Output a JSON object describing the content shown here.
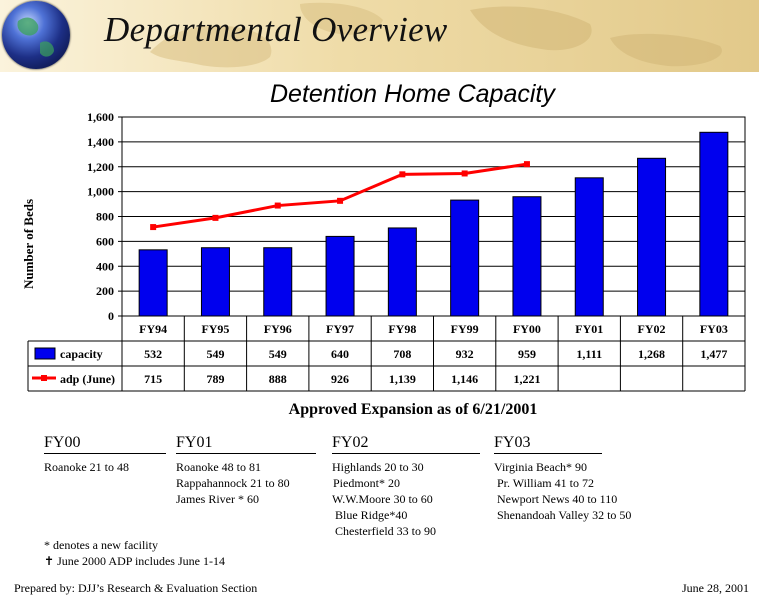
{
  "header": {
    "title": "Departmental Overview"
  },
  "chart_data": {
    "type": "bar",
    "title": "Detention Home Capacity",
    "ylabel": "Number of Beds",
    "xlabel": "",
    "ylim": [
      0,
      1600
    ],
    "y_ticks": [
      0,
      200,
      400,
      600,
      800,
      1000,
      1200,
      1400,
      1600
    ],
    "y_tick_labels": [
      "0",
      "200",
      "400",
      "600",
      "800",
      "1,000",
      "1,200",
      "1,400",
      "1,600"
    ],
    "grid": true,
    "categories": [
      "FY94",
      "FY95",
      "FY96",
      "FY97",
      "FY98",
      "FY99",
      "FY00",
      "FY01",
      "FY02",
      "FY03"
    ],
    "series": [
      {
        "name": "capacity",
        "kind": "bar",
        "color": "#0000ee",
        "values": [
          532,
          549,
          549,
          640,
          708,
          932,
          959,
          1111,
          1268,
          1477
        ],
        "labels": [
          "532",
          "549",
          "549",
          "640",
          "708",
          "932",
          "959",
          "1,111",
          "1,268",
          "1,477"
        ]
      },
      {
        "name": "adp (June)",
        "kind": "line",
        "color": "#ff0000",
        "values": [
          715,
          789,
          888,
          926,
          1139,
          1146,
          1221,
          null,
          null,
          null
        ],
        "labels": [
          "715",
          "789",
          "888",
          "926",
          "1,139",
          "1,146",
          "1,221",
          "",
          "",
          ""
        ]
      }
    ]
  },
  "expansion": {
    "title": "Approved Expansion as of 6/21/2001",
    "columns": [
      {
        "year": "FY00",
        "items": [
          "Roanoke 21 to 48"
        ]
      },
      {
        "year": "FY01",
        "items": [
          "Roanoke 48 to 81",
          "Rappahannock 21 to 80",
          "James River * 60"
        ]
      },
      {
        "year": "FY02",
        "items": [
          "Highlands 20 to 30",
          "Piedmont* 20",
          "W.W.Moore 30 to 60",
          "Blue Ridge*40",
          "Chesterfield 33 to 90"
        ]
      },
      {
        "year": "FY03",
        "items": [
          "Virginia Beach* 90",
          "Pr. William 41 to 72",
          "Newport News 40 to 110",
          "Shenandoah Valley 32 to 50"
        ]
      }
    ]
  },
  "notes": {
    "new_facility": "* denotes a new facility",
    "adp_symbol": "✝",
    "adp_note": "June 2000 ADP includes June 1-14"
  },
  "footer": {
    "prepared_by": "Prepared by: DJJ’s Research & Evaluation Section",
    "date": "June 28, 2001"
  },
  "colors": {
    "bar": "#0000ee",
    "line": "#ff0000",
    "banner": "#efdca8"
  }
}
